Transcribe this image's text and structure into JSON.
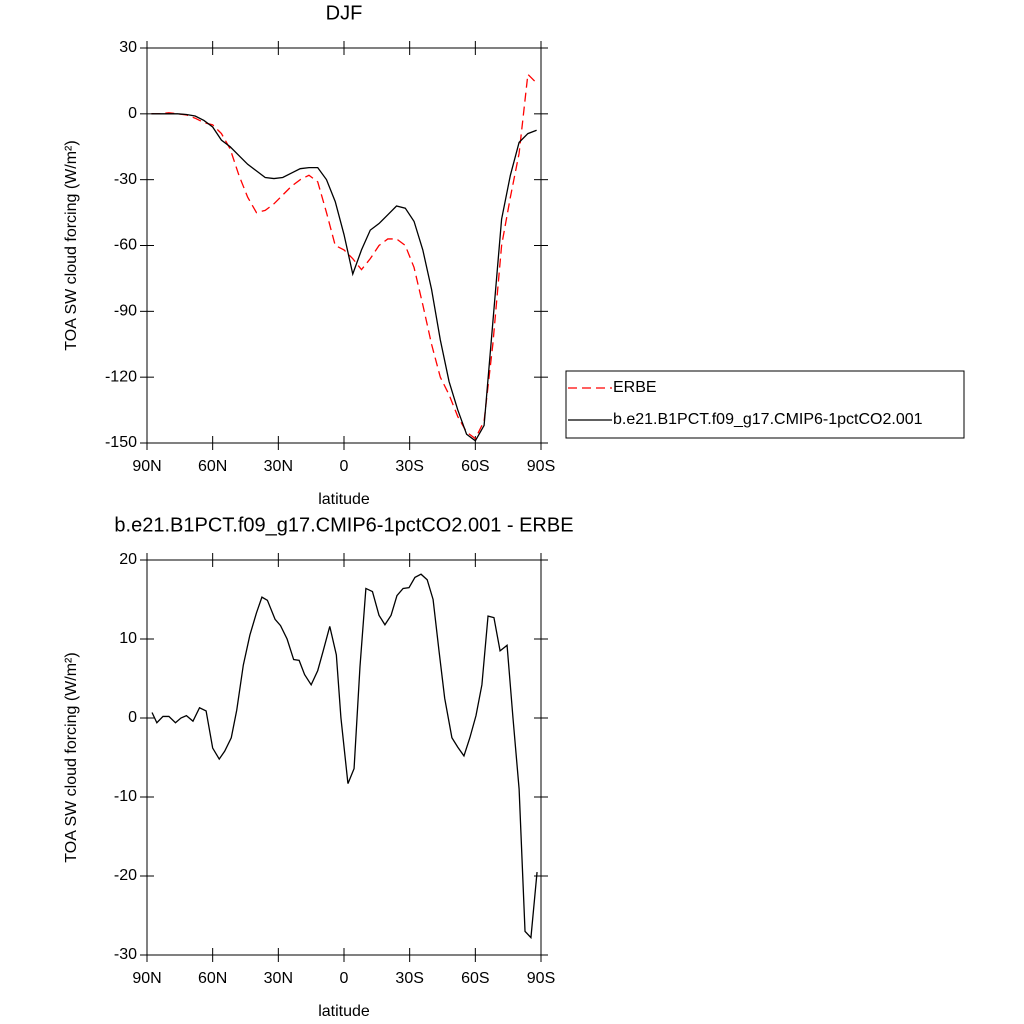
{
  "chart_data": [
    {
      "type": "line",
      "title": "DJF",
      "xlabel": "latitude",
      "ylabel": "TOA SW cloud forcing (W/m²)",
      "x": [
        88,
        84,
        80,
        76,
        72,
        68,
        64,
        60,
        56,
        52,
        48,
        44,
        40,
        36,
        32,
        28,
        24,
        20,
        16,
        12,
        8,
        4,
        0,
        -4,
        -8,
        -12,
        -16,
        -20,
        -24,
        -28,
        -32,
        -36,
        -40,
        -44,
        -48,
        -52,
        -56,
        -60,
        -64,
        -68,
        -72,
        -76,
        -80,
        -84,
        -88
      ],
      "series": [
        {
          "name": "ERBE",
          "color": "#ff0000",
          "dash": true,
          "values": [
            0,
            0,
            0.5,
            0,
            -0.5,
            -2,
            -4,
            -5,
            -9,
            -16,
            -28,
            -38,
            -45,
            -44,
            -41,
            -37,
            -33,
            -30,
            -28,
            -31,
            -45,
            -60,
            -62,
            -66,
            -71,
            -66,
            -60,
            -57,
            -57,
            -60,
            -70,
            -87,
            -105,
            -120,
            -128,
            -138,
            -145,
            -148,
            -140,
            -105,
            -60,
            -38,
            -18,
            18,
            14
          ]
        },
        {
          "name": "b.e21.B1PCT.f09_g17.CMIP6-1pctCO2.001",
          "color": "#000000",
          "dash": false,
          "values": [
            0,
            0,
            0,
            0,
            -0.3,
            -1,
            -3,
            -6,
            -12,
            -15,
            -19,
            -23,
            -26,
            -29,
            -29.5,
            -29,
            -27,
            -25,
            -24.5,
            -24.5,
            -30,
            -40,
            -55,
            -73,
            -62,
            -53,
            -50,
            -46,
            -42,
            -43,
            -49,
            -62,
            -80,
            -103,
            -122,
            -135,
            -146,
            -149,
            -142,
            -95,
            -48,
            -28,
            -13,
            -9,
            -7.5
          ]
        }
      ],
      "xlim": [
        90,
        -90
      ],
      "xticks": [
        {
          "value": 90,
          "label": "90N"
        },
        {
          "value": 60,
          "label": "60N"
        },
        {
          "value": 30,
          "label": "30N"
        },
        0,
        {
          "value": -30,
          "label": "30S"
        },
        {
          "value": -60,
          "label": "60S"
        },
        {
          "value": -90,
          "label": "90S"
        }
      ],
      "ylim": [
        -150,
        30
      ],
      "yticks": [
        -150,
        -120,
        -90,
        -60,
        -30,
        0,
        30
      ],
      "legend": "right"
    },
    {
      "type": "line",
      "title": "b.e21.B1PCT.f09_g17.CMIP6-1pctCO2.001 - ERBE",
      "xlabel": "latitude",
      "ylabel": "TOA SW cloud forcing (W/m²)",
      "x": [
        87.7,
        85.5,
        82.7,
        80,
        77,
        74.5,
        72,
        69,
        66,
        63,
        60,
        57,
        54.5,
        51.5,
        49,
        46,
        43,
        40,
        37.5,
        35,
        31.5,
        29,
        26,
        23,
        20.5,
        18,
        15,
        12,
        9.5,
        6.5,
        3.5,
        1.4,
        -1.8,
        -4.6,
        -7.3,
        -10,
        -13,
        -16,
        -18.7,
        -21.5,
        -24.2,
        -27,
        -29.7,
        -32.4,
        -35.2,
        -38,
        -40.7,
        -43.4,
        -46,
        -49.3,
        -52,
        -54.8,
        -57.5,
        -60.3,
        -63,
        -65.8,
        -68.5,
        -71.3,
        -74.5,
        -77.2,
        -80,
        -82.7,
        -85.4,
        -88.2
      ],
      "series": [
        {
          "color": "#000000",
          "dash": false,
          "values": [
            0.7,
            -0.6,
            0.2,
            0.2,
            -0.6,
            0,
            0.3,
            -0.4,
            1.3,
            0.9,
            -3.8,
            -5.2,
            -4.2,
            -2.5,
            1,
            6.7,
            10.5,
            13.3,
            15.3,
            14.9,
            12.5,
            11.7,
            10,
            7.4,
            7.3,
            5.5,
            4.2,
            6,
            8.5,
            11.6,
            8,
            0,
            -8.3,
            -6.4,
            6.5,
            16.4,
            16,
            13,
            11.8,
            13,
            15.5,
            16.4,
            16.5,
            17.8,
            18.2,
            17.5,
            15,
            8.5,
            2.5,
            -2.5,
            -3.7,
            -4.8,
            -2.5,
            0.3,
            4.2,
            12.9,
            12.7,
            8.5,
            9.2,
            0,
            -9,
            -27,
            -27.8,
            -19.5
          ]
        }
      ],
      "xlim": [
        90,
        -90
      ],
      "xticks": [
        {
          "value": 90,
          "label": "90N"
        },
        {
          "value": 60,
          "label": "60N"
        },
        {
          "value": 30,
          "label": "30N"
        },
        0,
        {
          "value": -30,
          "label": "30S"
        },
        {
          "value": -60,
          "label": "60S"
        },
        {
          "value": -90,
          "label": "90S"
        }
      ],
      "ylim": [
        -30,
        20
      ],
      "yticks": [
        -30,
        -20,
        -10,
        0,
        10,
        20
      ]
    }
  ]
}
